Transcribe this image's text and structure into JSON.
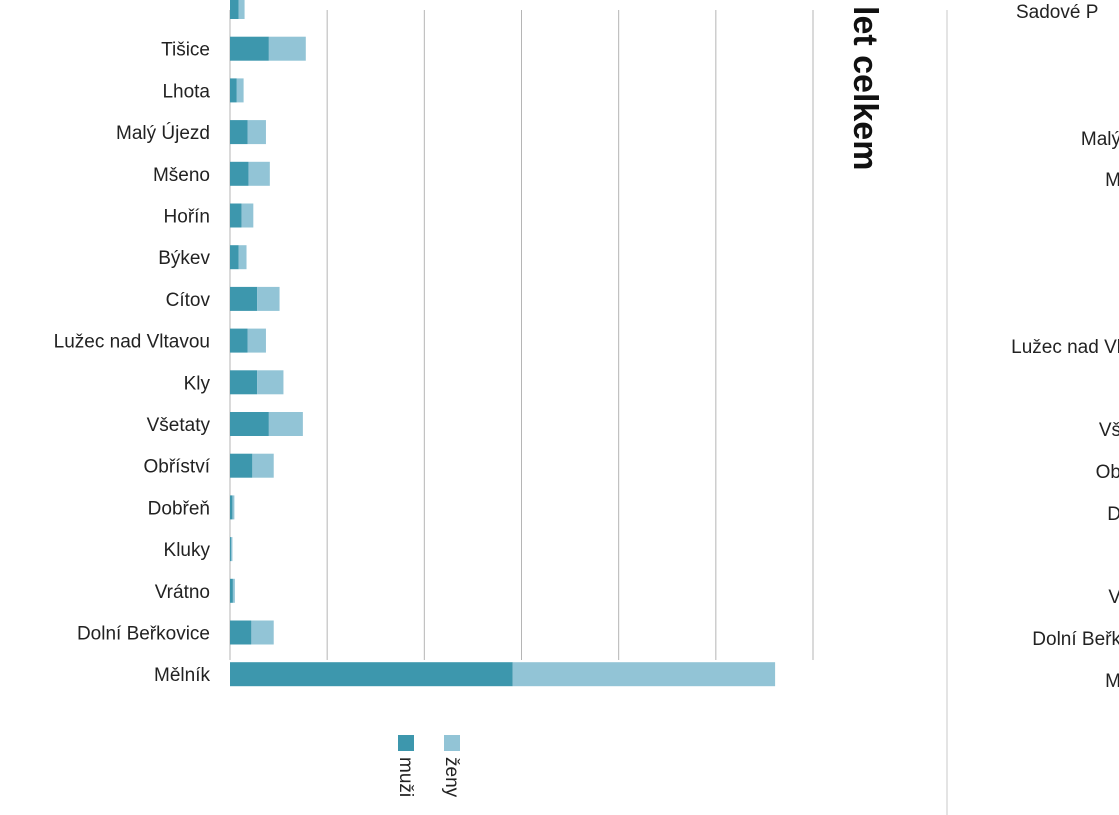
{
  "chart_data": {
    "type": "bar",
    "orientation": "horizontal",
    "stacked": true,
    "title": "let celkem",
    "title_orientation": "vertical",
    "xlim": [
      0,
      6000
    ],
    "grid": true,
    "categories": [
      "",
      "Tišice",
      "Lhota",
      "Malý Újezd",
      "Mšeno",
      "Hořín",
      "Býkev",
      "Cítov",
      "Lužec nad Vltavou",
      "Kly",
      "Všetaty",
      "Obříství",
      "Dobřeň",
      "Kluky",
      "Vrátno",
      "Dolní Beřkovice",
      "Mělník"
    ],
    "series": [
      {
        "name": "muži",
        "color": "#3d97ad",
        "values": [
          90,
          400,
          70,
          180,
          190,
          120,
          90,
          280,
          180,
          280,
          400,
          230,
          25,
          10,
          30,
          220,
          2910
        ]
      },
      {
        "name": "ženy",
        "color": "#92c4d6",
        "values": [
          60,
          380,
          70,
          190,
          220,
          120,
          80,
          230,
          190,
          270,
          350,
          220,
          20,
          15,
          20,
          230,
          2700
        ]
      }
    ],
    "legend": {
      "position": "bottom",
      "orientation": "vertical"
    },
    "right_panel": {
      "header_fragment": "Sadové P",
      "labels": [
        "Malý",
        "M",
        "Lužec nad Vl",
        "Vš",
        "Ob",
        "D",
        "V",
        "Dolní Beřk",
        "M"
      ]
    }
  }
}
